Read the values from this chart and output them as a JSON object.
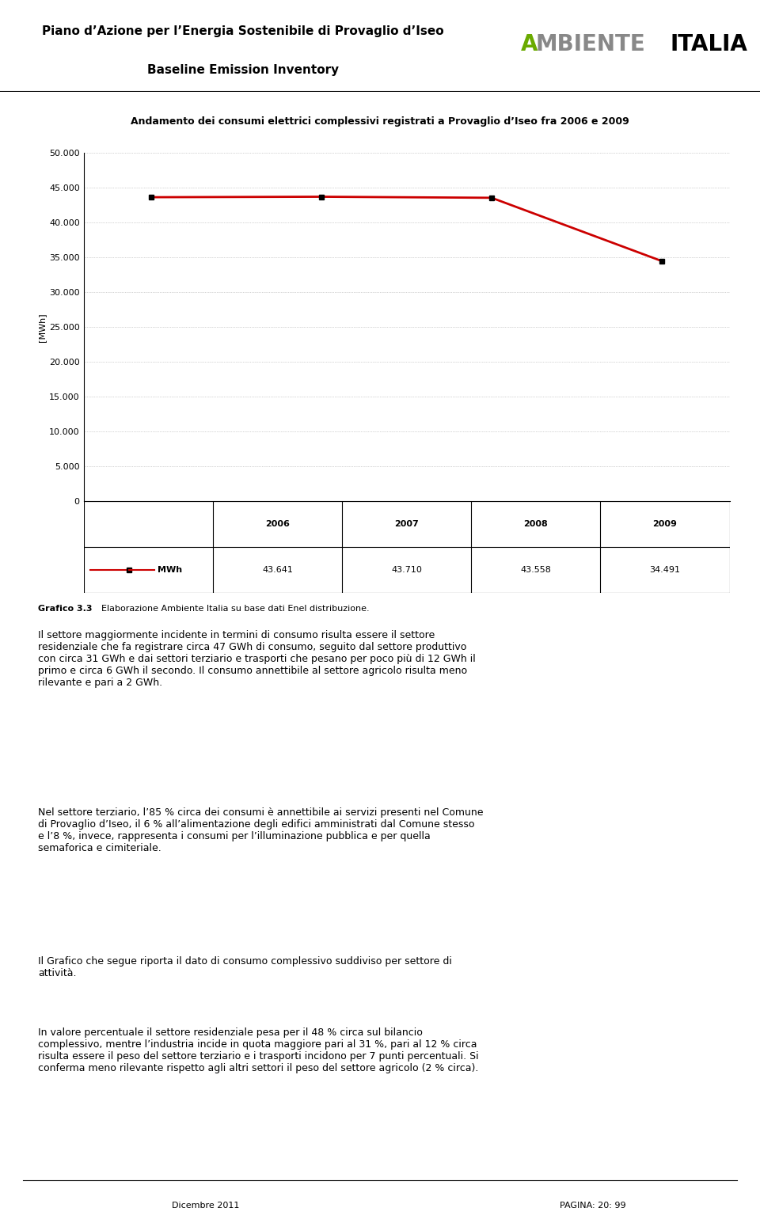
{
  "page_title_line1": "Piano d’Azione per l’Energia Sostenibile di Provaglio d’Iseo",
  "page_title_line2": "Baseline Emission Inventory",
  "chart_title": "Andamento dei consumi elettrici complessivi registrati a Provaglio d’Iseo fra 2006 e 2009",
  "years": [
    2006,
    2007,
    2008,
    2009
  ],
  "values": [
    43641,
    43710,
    43558,
    34491
  ],
  "ylabel": "[MWh]",
  "yticks": [
    0,
    5000,
    10000,
    15000,
    20000,
    25000,
    30000,
    35000,
    40000,
    45000,
    50000
  ],
  "ytick_labels": [
    "0",
    "5.000",
    "10.000",
    "15.000",
    "20.000",
    "25.000",
    "30.000",
    "35.000",
    "40.000",
    "45.000",
    "50.000"
  ],
  "line_color": "#cc0000",
  "marker_color": "#000000",
  "table_values": [
    "43.641",
    "43.710",
    "43.558",
    "34.491"
  ],
  "grafico_bold": "Grafico 3.3 ",
  "grafico_rest": "Elaborazione Ambiente Italia su base dati Enel distribuzione.",
  "para1": "Il settore maggiormente incidente in termini di consumo risulta essere il settore\nresidenziale che fa registrare circa 47 GWh di consumo, seguito dal settore produttivo\ncon circa 31 GWh e dai settori terziario e trasporti che pesano per poco più di 12 GWh il\nprimo e circa 6 GWh il secondo. Il consumo annettibile al settore agricolo risulta meno\nrilevante e pari a 2 GWh.",
  "para2": "Nel settore terziario, l’85 % circa dei consumi è annettibile ai servizi presenti nel Comune\ndi Provaglio d’Iseo, il 6 % all’alimentazione degli edifici amministrati dal Comune stesso\ne l’8 %, invece, rappresenta i consumi per l’illuminazione pubblica e per quella\nsemaforica e cimiteriale.",
  "para3": "Il Grafico che segue riporta il dato di consumo complessivo suddiviso per settore di\nattività.",
  "para4": "In valore percentuale il settore residenziale pesa per il 48 % circa sul bilancio\ncomplessivo, mentre l’industria incide in quota maggiore pari al 31 %, pari al 12 % circa\nrisulta essere il peso del settore terziario e i trasporti incidono per 7 punti percentuali. Si\nconferma meno rilevante rispetto agli altri settori il peso del settore agricolo (2 % circa).",
  "footer_left": "Dicembre 2011",
  "footer_right": "PAGINA: 20: 99",
  "bg_color": "#ffffff",
  "grid_color": "#aaaaaa",
  "text_color": "#000000",
  "logo_ambiente": "AMBIENTE",
  "logo_italia": "ITALIA",
  "logo_a_color": "#6aaa00",
  "logo_ambiente_color": "#888888",
  "logo_italia_color": "#000000"
}
